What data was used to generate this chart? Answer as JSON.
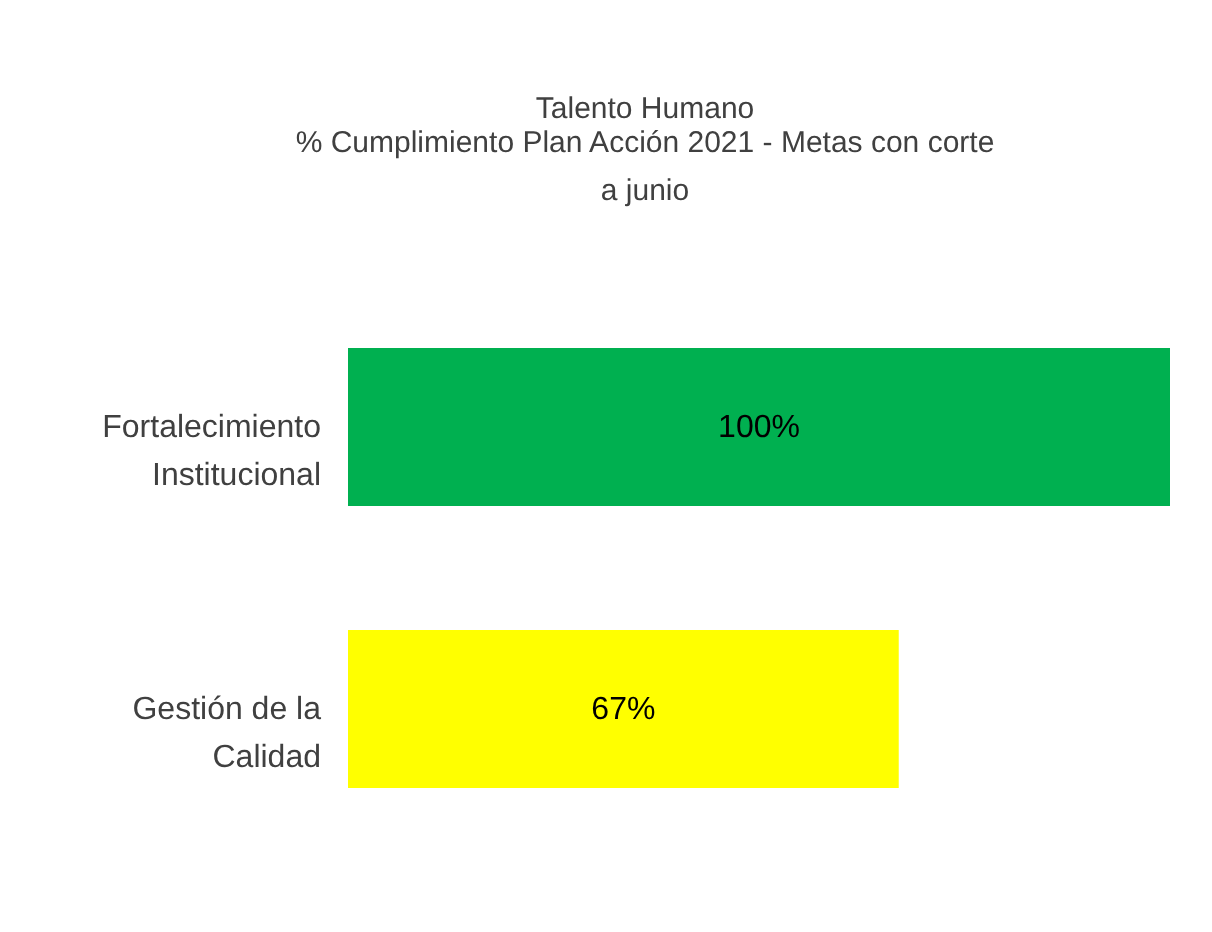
{
  "chart_data": {
    "type": "bar",
    "orientation": "horizontal",
    "title": "Talento Humano",
    "subtitle": "% Cumplimiento Plan Acción 2021 -  Metas con corte a junio",
    "categories": [
      "Fortalecimiento Institucional",
      "Gestión de la Calidad"
    ],
    "values": [
      100,
      67
    ],
    "colors": [
      "#00b050",
      "#ffff00"
    ],
    "value_labels": [
      "100%",
      "67%"
    ]
  }
}
